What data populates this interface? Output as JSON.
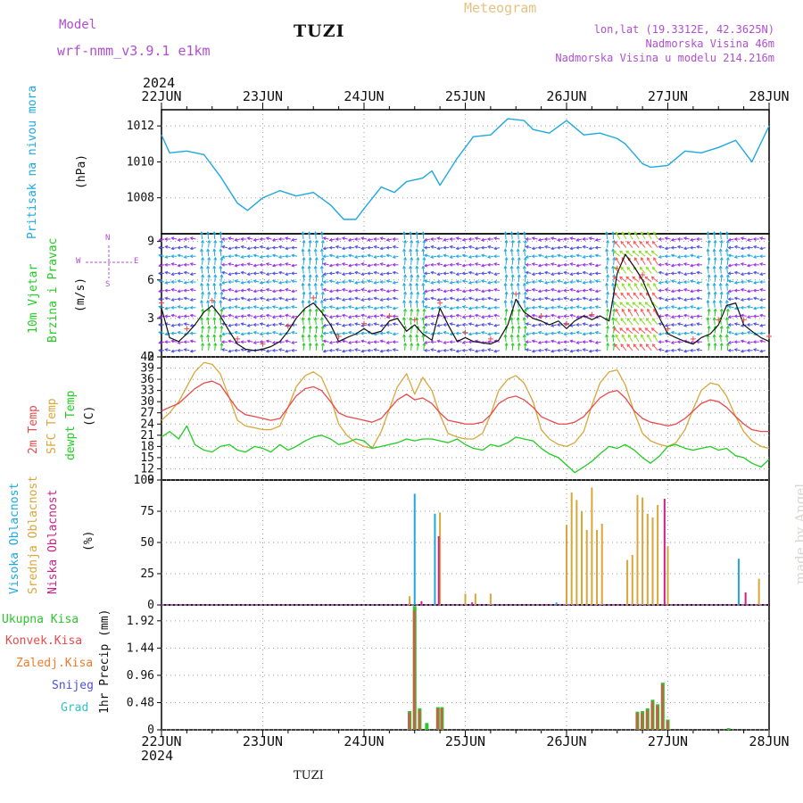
{
  "header": {
    "model_label": "Model",
    "model_name": "wrf-nmm_v3.9.1 e1km",
    "station": "TUZI",
    "meteogram": "Meteogram",
    "lonlat": "lon,lat (19.3312E, 42.3625N)",
    "altitude": "Nadmorska Visina 46m",
    "model_altitude": "Nadmorska Visina u modelu 214.216m",
    "year_top": "2024",
    "year_bottom": "2024",
    "footer": "TUZI",
    "credit": "made by Angel"
  },
  "colors": {
    "pressure": "#1ea8e0",
    "temp2m": "#e84a4a",
    "sfc": "#d9a63a",
    "dewpt": "#22cc22",
    "high_cloud": "#1ea8e0",
    "mid_cloud": "#d9a63a",
    "low_cloud": "#cc2288",
    "total_precip": "#2ec42e",
    "conv_precip": "#e84a4a",
    "frozen_precip": "#ef7a2a",
    "snow": "#5050e0",
    "graupel": "#2ec4c4"
  },
  "chart_data": [
    {
      "type": "line",
      "panel": "pressure",
      "ylabel": [
        "Pritisak na nivou mora",
        "(hPa)"
      ],
      "x_ticks": [
        "22JUN",
        "23JUN",
        "24JUN",
        "25JUN",
        "26JUN",
        "27JUN",
        "28JUN"
      ],
      "y_ticks": [
        "1008",
        "1010",
        "1012"
      ],
      "ylim": [
        1006,
        1012.9
      ],
      "x_unit": "days since 2024-06-22 00UTC",
      "series": [
        {
          "name": "Pritisak",
          "x": [
            0,
            0.08,
            0.25,
            0.42,
            0.58,
            0.75,
            0.85,
            1.0,
            1.17,
            1.33,
            1.5,
            1.67,
            1.8,
            1.92,
            2.0,
            2.17,
            2.3,
            2.42,
            2.58,
            2.67,
            2.75,
            2.92,
            3.08,
            3.25,
            3.42,
            3.58,
            3.67,
            3.83,
            4.0,
            4.17,
            4.33,
            4.5,
            4.58,
            4.75,
            4.83,
            5.0,
            5.17,
            5.33,
            5.5,
            5.67,
            5.83,
            6.0
          ],
          "y": [
            1011.5,
            1010.5,
            1010.6,
            1010.4,
            1009.2,
            1007.7,
            1007.3,
            1008.0,
            1008.4,
            1008.1,
            1008.3,
            1007.6,
            1006.8,
            1006.8,
            1007.4,
            1008.6,
            1008.3,
            1008.9,
            1009.1,
            1009.5,
            1008.7,
            1010.2,
            1011.4,
            1011.5,
            1012.4,
            1012.3,
            1011.8,
            1011.6,
            1012.3,
            1011.5,
            1011.6,
            1011.3,
            1011.0,
            1009.9,
            1009.7,
            1009.8,
            1010.6,
            1010.5,
            1010.8,
            1011.2,
            1010.0,
            1012.0
          ]
        }
      ]
    },
    {
      "type": "line",
      "panel": "wind",
      "ylabel": [
        "10m Vjetar",
        "Brzina i Pravac",
        "(m/s)"
      ],
      "compass": [
        "N",
        "W",
        "E",
        "S"
      ],
      "y_ticks": [
        "0",
        "3",
        "6",
        "9"
      ],
      "ylim": [
        0,
        9.6
      ],
      "series": [
        {
          "name": "Brzina",
          "x": [
            0,
            0.08,
            0.17,
            0.25,
            0.33,
            0.42,
            0.5,
            0.58,
            0.67,
            0.75,
            0.83,
            0.92,
            1.0,
            1.08,
            1.17,
            1.25,
            1.33,
            1.42,
            1.5,
            1.58,
            1.67,
            1.75,
            1.83,
            1.92,
            2.0,
            2.08,
            2.17,
            2.25,
            2.33,
            2.42,
            2.5,
            2.58,
            2.67,
            2.75,
            2.83,
            2.92,
            3.0,
            3.08,
            3.17,
            3.25,
            3.33,
            3.42,
            3.5,
            3.58,
            3.67,
            3.75,
            3.83,
            3.92,
            4.0,
            4.08,
            4.17,
            4.25,
            4.33,
            4.42,
            4.5,
            4.58,
            4.67,
            4.75,
            4.83,
            4.92,
            5.0,
            5.08,
            5.17,
            5.25,
            5.33,
            5.42,
            5.5,
            5.58,
            5.67,
            5.75,
            5.83,
            5.92,
            6.0
          ],
          "y": [
            3.8,
            1.5,
            1.2,
            1.8,
            2.5,
            3.5,
            4.0,
            3.2,
            2.0,
            1.0,
            0.6,
            0.5,
            0.6,
            0.8,
            1.2,
            2.0,
            3.0,
            3.8,
            4.2,
            3.5,
            2.5,
            1.2,
            1.5,
            1.8,
            2.2,
            1.8,
            2.0,
            2.8,
            3.0,
            2.0,
            2.5,
            1.8,
            1.3,
            3.8,
            2.5,
            1.2,
            1.5,
            1.2,
            1.1,
            1.0,
            1.3,
            2.5,
            4.5,
            3.5,
            3.0,
            2.8,
            2.5,
            2.8,
            2.2,
            2.8,
            3.2,
            2.9,
            3.2,
            2.8,
            6.5,
            8.0,
            7.0,
            6.0,
            4.5,
            3.0,
            1.8,
            1.5,
            1.2,
            1.0,
            1.5,
            1.8,
            2.5,
            4.0,
            4.2,
            2.5,
            2.0,
            1.5,
            1.2
          ]
        }
      ]
    },
    {
      "type": "line",
      "panel": "temperature",
      "ylabel": [
        "2m Temp",
        "SFC Temp",
        "dewpt Temp",
        "(C)"
      ],
      "y_ticks": [
        "9",
        "12",
        "15",
        "18",
        "21",
        "24",
        "27",
        "30",
        "33",
        "36",
        "39",
        "42"
      ],
      "ylim": [
        9,
        42
      ],
      "series": [
        {
          "name": "2m Temp",
          "x": [
            0,
            0.08,
            0.17,
            0.25,
            0.33,
            0.42,
            0.5,
            0.58,
            0.67,
            0.75,
            0.83,
            0.92,
            1.0,
            1.08,
            1.17,
            1.25,
            1.33,
            1.42,
            1.5,
            1.58,
            1.67,
            1.75,
            1.83,
            1.92,
            2.0,
            2.08,
            2.17,
            2.25,
            2.33,
            2.42,
            2.5,
            2.58,
            2.67,
            2.75,
            2.83,
            2.92,
            3.0,
            3.08,
            3.17,
            3.25,
            3.33,
            3.42,
            3.5,
            3.58,
            3.67,
            3.75,
            3.83,
            3.92,
            4.0,
            4.08,
            4.17,
            4.25,
            4.33,
            4.42,
            4.5,
            4.58,
            4.67,
            4.75,
            4.83,
            4.92,
            5.0,
            5.08,
            5.17,
            5.25,
            5.33,
            5.42,
            5.5,
            5.58,
            5.67,
            5.75,
            5.83,
            5.92,
            6.0
          ],
          "y": [
            27.5,
            28.5,
            29.5,
            31.5,
            33.5,
            35.0,
            35.5,
            34.5,
            31.0,
            28.0,
            26.5,
            26.0,
            25.5,
            25.0,
            25.5,
            28.5,
            31.5,
            33.5,
            34.0,
            33.0,
            30.0,
            27.0,
            26.0,
            25.5,
            25.0,
            24.5,
            25.5,
            28.0,
            30.5,
            32.0,
            30.5,
            31.0,
            29.5,
            27.0,
            25.0,
            24.5,
            24.0,
            24.0,
            24.5,
            26.5,
            29.5,
            31.0,
            31.5,
            30.5,
            28.5,
            26.0,
            25.0,
            24.0,
            24.0,
            24.5,
            26.0,
            28.5,
            31.0,
            32.5,
            33.0,
            31.0,
            27.5,
            25.5,
            24.5,
            24.0,
            23.5,
            24.0,
            25.5,
            27.5,
            29.5,
            30.5,
            30.0,
            28.5,
            26.0,
            24.0,
            22.5,
            22.0,
            22.0
          ]
        },
        {
          "name": "SFC Temp",
          "x": [
            0,
            0.08,
            0.17,
            0.25,
            0.33,
            0.42,
            0.5,
            0.58,
            0.67,
            0.75,
            0.83,
            0.92,
            1.0,
            1.08,
            1.17,
            1.25,
            1.33,
            1.42,
            1.5,
            1.58,
            1.67,
            1.75,
            1.83,
            1.92,
            2.0,
            2.08,
            2.17,
            2.25,
            2.33,
            2.42,
            2.5,
            2.58,
            2.67,
            2.75,
            2.83,
            2.92,
            3.0,
            3.08,
            3.17,
            3.25,
            3.33,
            3.42,
            3.5,
            3.58,
            3.67,
            3.75,
            3.83,
            3.92,
            4.0,
            4.08,
            4.17,
            4.25,
            4.33,
            4.42,
            4.5,
            4.58,
            4.67,
            4.75,
            4.83,
            4.92,
            5.0,
            5.08,
            5.17,
            5.25,
            5.33,
            5.42,
            5.5,
            5.58,
            5.67,
            5.75,
            5.83,
            5.92,
            6.0
          ],
          "y": [
            25.0,
            27.0,
            30.0,
            34.0,
            38.0,
            40.5,
            40.0,
            37.5,
            31.0,
            25.0,
            23.5,
            23.0,
            22.5,
            22.5,
            23.5,
            28.5,
            34.0,
            37.0,
            38.0,
            36.5,
            31.0,
            24.0,
            21.0,
            19.0,
            18.0,
            17.5,
            22.0,
            28.0,
            34.0,
            37.5,
            32.0,
            36.5,
            33.0,
            26.5,
            21.5,
            20.5,
            20.0,
            20.0,
            21.5,
            26.5,
            33.0,
            36.0,
            37.0,
            35.0,
            30.0,
            22.5,
            20.0,
            18.5,
            18.0,
            19.0,
            22.0,
            29.0,
            35.0,
            38.0,
            38.5,
            34.5,
            27.0,
            21.5,
            19.5,
            18.5,
            18.0,
            19.0,
            22.5,
            28.0,
            33.0,
            35.0,
            34.5,
            31.5,
            26.0,
            22.0,
            19.5,
            18.0,
            17.5
          ]
        },
        {
          "name": "dewpt Temp",
          "x": [
            0,
            0.08,
            0.17,
            0.25,
            0.33,
            0.42,
            0.5,
            0.58,
            0.67,
            0.75,
            0.83,
            0.92,
            1.0,
            1.08,
            1.17,
            1.25,
            1.33,
            1.42,
            1.5,
            1.58,
            1.67,
            1.75,
            1.83,
            1.92,
            2.0,
            2.08,
            2.17,
            2.25,
            2.33,
            2.42,
            2.5,
            2.58,
            2.67,
            2.75,
            2.83,
            2.92,
            3.0,
            3.08,
            3.17,
            3.25,
            3.33,
            3.42,
            3.5,
            3.58,
            3.67,
            3.75,
            3.83,
            3.92,
            4.0,
            4.08,
            4.17,
            4.25,
            4.33,
            4.42,
            4.5,
            4.58,
            4.67,
            4.75,
            4.83,
            4.92,
            5.0,
            5.08,
            5.17,
            5.25,
            5.33,
            5.42,
            5.5,
            5.58,
            5.67,
            5.75,
            5.83,
            5.92,
            6.0
          ],
          "y": [
            20.5,
            22.0,
            20.0,
            23.5,
            18.5,
            17.0,
            16.5,
            18.0,
            18.5,
            17.0,
            16.5,
            18.0,
            17.5,
            16.5,
            18.5,
            17.0,
            18.0,
            19.5,
            20.5,
            21.0,
            20.0,
            18.5,
            19.0,
            20.0,
            19.5,
            17.5,
            18.0,
            18.5,
            19.0,
            20.0,
            19.5,
            20.0,
            20.0,
            19.5,
            19.0,
            20.0,
            18.5,
            17.5,
            17.0,
            18.5,
            18.0,
            19.0,
            20.5,
            20.0,
            19.5,
            17.5,
            16.0,
            15.0,
            13.0,
            11.0,
            12.5,
            14.0,
            16.0,
            18.0,
            17.5,
            18.5,
            17.0,
            15.0,
            13.5,
            15.5,
            18.0,
            18.5,
            17.5,
            17.0,
            17.5,
            18.0,
            17.0,
            17.5,
            15.5,
            15.0,
            13.5,
            12.5,
            14.5
          ]
        }
      ]
    },
    {
      "type": "bar",
      "panel": "clouds",
      "ylabel": [
        "Visoka Oblacnost",
        "Srednja Oblacnost",
        "Niska Oblacnost",
        "(%)"
      ],
      "y_ticks": [
        "0",
        "25",
        "50",
        "75",
        "100"
      ],
      "ylim": [
        0,
        100
      ],
      "series": [
        {
          "name": "Visoka Oblacnost",
          "x": [
            2.5,
            2.7,
            3.9,
            5.7
          ],
          "y": [
            89,
            73,
            2,
            37
          ]
        },
        {
          "name": "Srednja Oblacnost",
          "x": [
            2.45,
            2.75,
            3.0,
            3.1,
            3.25,
            4.0,
            4.05,
            4.1,
            4.15,
            4.2,
            4.25,
            4.3,
            4.35,
            4.6,
            4.65,
            4.7,
            4.75,
            4.8,
            4.85,
            4.9,
            5.0,
            5.9
          ],
          "y": [
            7,
            74,
            9,
            9,
            9,
            64,
            90,
            84,
            75,
            60,
            94,
            60,
            65,
            36,
            40,
            88,
            86,
            73,
            70,
            80,
            47,
            21
          ]
        },
        {
          "name": "Niska Oblacnost",
          "x": [
            2.55,
            2.72,
            3.05,
            4.95,
            5.75
          ],
          "y": [
            3,
            55,
            2,
            85,
            10
          ]
        }
      ]
    },
    {
      "type": "bar",
      "panel": "precip",
      "ylabel": [
        "1hr Precip (mm)"
      ],
      "legend": [
        "Ukupna Kisa",
        "Konvek.Kisa",
        "Zaledj.Kisa",
        "Snijeg",
        "Grad"
      ],
      "y_ticks": [
        "0",
        "0.48",
        "0.96",
        "1.44",
        "1.92"
      ],
      "ylim": [
        0,
        2.2
      ],
      "series": [
        {
          "name": "Ukupna Kisa",
          "x": [
            2.45,
            2.5,
            2.55,
            2.62,
            2.73,
            2.77,
            4.7,
            4.75,
            4.8,
            4.85,
            4.9,
            4.95,
            5.0,
            5.6
          ],
          "y": [
            0.33,
            2.18,
            0.38,
            0.12,
            0.4,
            0.4,
            0.32,
            0.33,
            0.38,
            0.53,
            0.45,
            0.83,
            0.18,
            0.03
          ]
        },
        {
          "name": "Konvek.Kisa",
          "x": [
            2.45,
            2.5,
            2.55,
            2.73,
            2.77,
            4.7,
            4.75,
            4.8,
            4.85,
            4.9,
            4.95,
            5.0
          ],
          "y": [
            0.3,
            2.1,
            0.35,
            0.38,
            0.38,
            0.3,
            0.3,
            0.35,
            0.5,
            0.42,
            0.8,
            0.16
          ]
        }
      ]
    }
  ]
}
